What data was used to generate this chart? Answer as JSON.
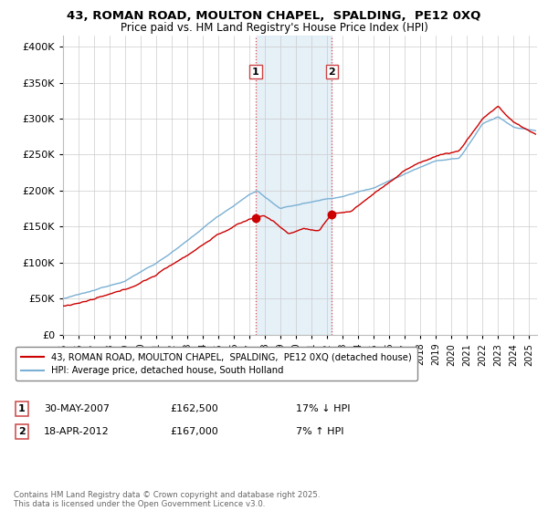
{
  "title_line1": "43, ROMAN ROAD, MOULTON CHAPEL,  SPALDING,  PE12 0XQ",
  "title_line2": "Price paid vs. HM Land Registry's House Price Index (HPI)",
  "ylabel_ticks": [
    "£0",
    "£50K",
    "£100K",
    "£150K",
    "£200K",
    "£250K",
    "£300K",
    "£350K",
    "£400K"
  ],
  "ytick_values": [
    0,
    50000,
    100000,
    150000,
    200000,
    250000,
    300000,
    350000,
    400000
  ],
  "ylim": [
    0,
    415000
  ],
  "xlim_start": 1995.0,
  "xlim_end": 2025.5,
  "xtick_years": [
    1995,
    1996,
    1997,
    1998,
    1999,
    2000,
    2001,
    2002,
    2003,
    2004,
    2005,
    2006,
    2007,
    2008,
    2009,
    2010,
    2011,
    2012,
    2013,
    2014,
    2015,
    2016,
    2017,
    2018,
    2019,
    2020,
    2021,
    2022,
    2023,
    2024,
    2025
  ],
  "red_line_color": "#cc0000",
  "blue_line_color": "#7ab0d4",
  "blue_fill_color": "#daeaf5",
  "shaded_region_x1": 2007.4,
  "shaded_region_x2": 2012.3,
  "marker1_x": 2007.4,
  "marker1_y": 162500,
  "marker2_x": 2012.3,
  "marker2_y": 167000,
  "legend_red_label": "43, ROMAN ROAD, MOULTON CHAPEL,  SPALDING,  PE12 0XQ (detached house)",
  "legend_blue_label": "HPI: Average price, detached house, South Holland",
  "annotation1_date": "30-MAY-2007",
  "annotation1_price": "£162,500",
  "annotation1_hpi": "17% ↓ HPI",
  "annotation2_date": "18-APR-2012",
  "annotation2_price": "£167,000",
  "annotation2_hpi": "7% ↑ HPI",
  "footer": "Contains HM Land Registry data © Crown copyright and database right 2025.\nThis data is licensed under the Open Government Licence v3.0.",
  "background_color": "#ffffff",
  "grid_color": "#cccccc"
}
